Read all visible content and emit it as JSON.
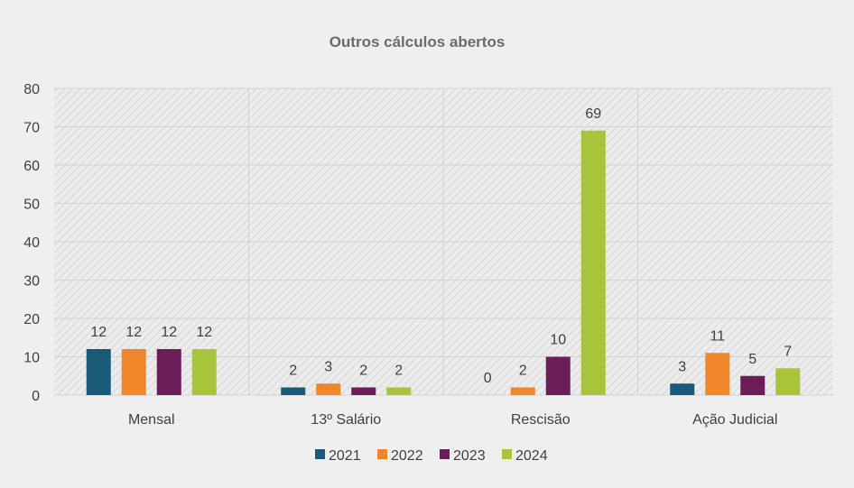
{
  "chart_data": {
    "type": "bar",
    "title": "Outros cálculos abertos",
    "categories": [
      "Mensal",
      "13º Salário",
      "Rescisão",
      "Ação Judicial"
    ],
    "series": [
      {
        "name": "2021",
        "color": "#1a5a78",
        "values": [
          12,
          2,
          0,
          3
        ]
      },
      {
        "name": "2022",
        "color": "#f0862a",
        "values": [
          12,
          3,
          2,
          11
        ]
      },
      {
        "name": "2023",
        "color": "#6a1d56",
        "values": [
          12,
          2,
          10,
          5
        ]
      },
      {
        "name": "2024",
        "color": "#a8c43a",
        "values": [
          12,
          2,
          69,
          7
        ]
      }
    ],
    "ylim": [
      0,
      80
    ],
    "yticks": [
      0,
      10,
      20,
      30,
      40,
      50,
      60,
      70,
      80
    ],
    "grid": true,
    "legend": "bottom",
    "xlabel": "",
    "ylabel": ""
  }
}
